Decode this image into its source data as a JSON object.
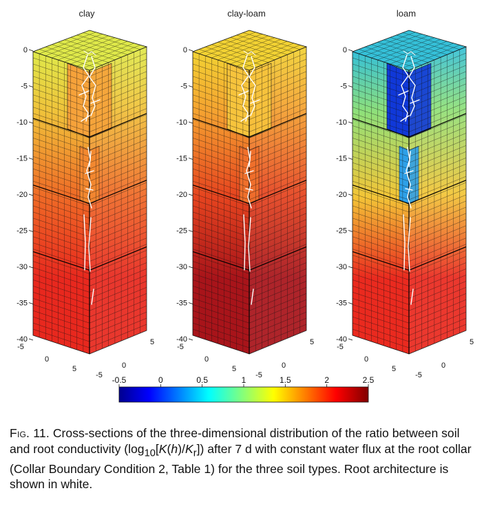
{
  "figure": {
    "panels": [
      {
        "title": "clay",
        "z_ticks": [
          "0",
          "-5",
          "-10",
          "-15",
          "-20",
          "-25",
          "-30",
          "-35",
          "-40"
        ],
        "x_ticks": [
          "-5",
          "0",
          "5"
        ],
        "y_ticks": [
          "-5",
          "0",
          "5"
        ],
        "colors": {
          "top": "#dfe94a",
          "upper": "#f0c23a",
          "mid": "#ef6a26",
          "lower": "#e8281e",
          "inner_top": "#f6a23a",
          "inner_mid": "#f3882f"
        }
      },
      {
        "title": "clay-loam",
        "z_ticks": [
          "0",
          "-5",
          "-10",
          "-15",
          "-20",
          "-25",
          "-30",
          "-35",
          "-40"
        ],
        "x_ticks": [
          "-5",
          "0",
          "5"
        ],
        "y_ticks": [
          "-5",
          "0",
          "5"
        ],
        "colors": {
          "top": "#f2d233",
          "upper": "#f5a230",
          "mid": "#e6441f",
          "lower": "#a8141a",
          "inner_top": "#f7c43c",
          "inner_mid": "#f0702b"
        }
      },
      {
        "title": "loam",
        "z_ticks": [
          "0",
          "-5",
          "-10",
          "-15",
          "-20",
          "-25",
          "-30",
          "-35",
          "-40"
        ],
        "x_ticks": [
          "-5",
          "0",
          "5"
        ],
        "y_ticks": [
          "-5",
          "0",
          "5"
        ],
        "colors": {
          "top": "#35c0d8",
          "upper": "#8fe07a",
          "mid": "#f3c537",
          "lower": "#ea2a1f",
          "inner_top": "#1038d8",
          "inner_mid": "#2ea0e8"
        }
      }
    ],
    "colorbar": {
      "ticks": [
        "-0.5",
        "0",
        "0.5",
        "1",
        "1.5",
        "2",
        "2.5"
      ],
      "range": [
        -0.5,
        2.5
      ],
      "colormap": "jet"
    }
  },
  "caption": {
    "label": "Fig. 11.",
    "text_1": " Cross-sections of the three-dimensional distribution of the ratio between soil and root conductivity (log",
    "sub_10": "10",
    "text_2": "[",
    "k_h": "K",
    "text_3": "(",
    "h": "h",
    "text_4": ")/",
    "k_r": "K",
    "sub_r": "r",
    "text_5": "]) after 7 d with constant water flux at the root collar (Collar Boundary Condition 2, Table 1) for the three soil types. Root architecture is shown in white."
  }
}
